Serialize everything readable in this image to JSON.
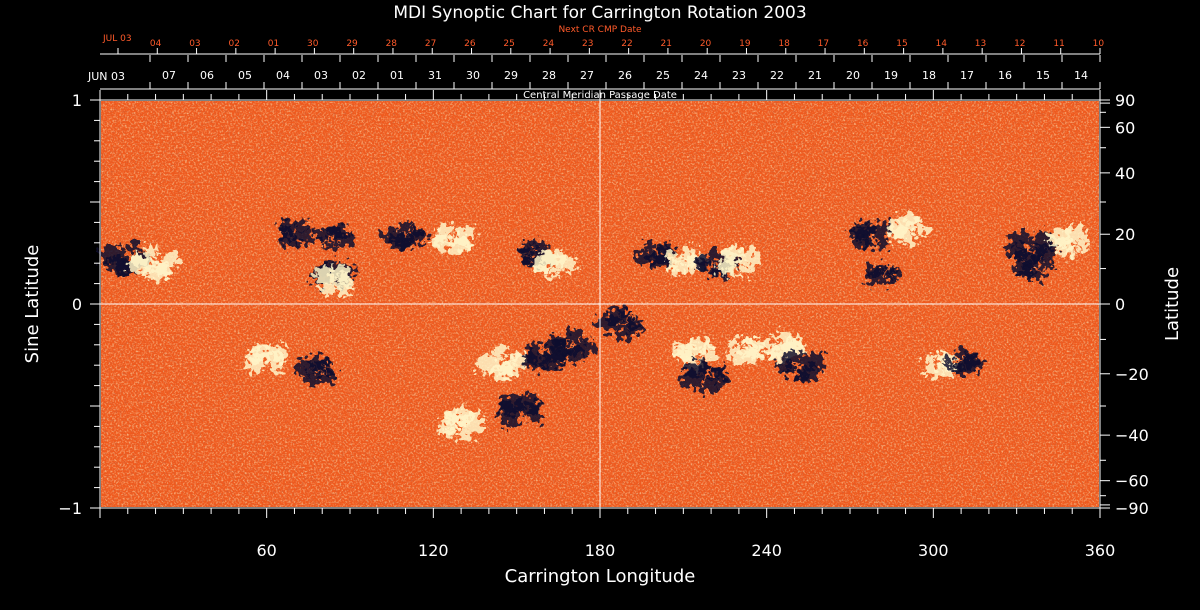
{
  "chart_data": {
    "type": "heatmap",
    "title": "MDI Synoptic Chart for Carrington Rotation 2003",
    "top_axis_label": "Next CR CMP Date",
    "top_axis_start_label": "JUL 03",
    "top_axis_ticks": [
      "04",
      "03",
      "02",
      "01",
      "30",
      "29",
      "28",
      "27",
      "26",
      "25",
      "24",
      "23",
      "22",
      "21",
      "20",
      "19",
      "18",
      "17",
      "16",
      "15",
      "14",
      "13",
      "12",
      "11",
      "10"
    ],
    "middle_axis_label": "Central Meridian Passage Date",
    "middle_axis_start_label": "JUN 03",
    "middle_axis_ticks": [
      "07",
      "06",
      "05",
      "04",
      "03",
      "02",
      "01",
      "31",
      "30",
      "29",
      "28",
      "27",
      "26",
      "25",
      "24",
      "23",
      "22",
      "21",
      "20",
      "19",
      "18",
      "17",
      "16",
      "15",
      "14"
    ],
    "xlabel": "Carrington Longitude",
    "xlim": [
      0,
      360
    ],
    "x_ticks": [
      60,
      120,
      180,
      240,
      300,
      360
    ],
    "ylabel_left": "Sine Latitude",
    "ylim": [
      -1,
      1
    ],
    "y_ticks_left": [
      "1",
      "0",
      "−1"
    ],
    "ylabel_right": "Latitude",
    "y_ticks_right": [
      90,
      60,
      40,
      20,
      0,
      -20,
      -40,
      -60,
      -90
    ],
    "grid": "crosshair at longitude 180 and sine latitude 0",
    "colors": {
      "background": "#000000",
      "text": "#ffffff",
      "top_axis": "#ff5a2a",
      "field_base": "#f0561c",
      "positive_polarity": "#fff4c8",
      "negative_polarity": "#12122e",
      "grid": "#ffffff"
    },
    "active_regions": [
      {
        "lon": 10,
        "sinlat": 0.23,
        "polarity": "negative",
        "strength": 1.0
      },
      {
        "lon": 20,
        "sinlat": 0.21,
        "polarity": "positive",
        "strength": 1.0
      },
      {
        "lon": 70,
        "sinlat": 0.35,
        "polarity": "negative",
        "strength": 0.6
      },
      {
        "lon": 84,
        "sinlat": 0.32,
        "polarity": "negative",
        "strength": 0.6
      },
      {
        "lon": 84,
        "sinlat": 0.13,
        "polarity": "negative",
        "strength": 0.8
      },
      {
        "lon": 85,
        "sinlat": 0.11,
        "polarity": "positive",
        "strength": 0.7
      },
      {
        "lon": 110,
        "sinlat": 0.34,
        "polarity": "negative",
        "strength": 0.7
      },
      {
        "lon": 127,
        "sinlat": 0.33,
        "polarity": "positive",
        "strength": 0.8
      },
      {
        "lon": 157,
        "sinlat": 0.25,
        "polarity": "negative",
        "strength": 0.6
      },
      {
        "lon": 163,
        "sinlat": 0.19,
        "polarity": "positive",
        "strength": 0.7
      },
      {
        "lon": 60,
        "sinlat": -0.28,
        "polarity": "positive",
        "strength": 0.8
      },
      {
        "lon": 78,
        "sinlat": -0.33,
        "polarity": "negative",
        "strength": 0.7
      },
      {
        "lon": 145,
        "sinlat": -0.28,
        "polarity": "positive",
        "strength": 0.9
      },
      {
        "lon": 160,
        "sinlat": -0.24,
        "polarity": "negative",
        "strength": 0.9
      },
      {
        "lon": 170,
        "sinlat": -0.2,
        "polarity": "negative",
        "strength": 0.8
      },
      {
        "lon": 130,
        "sinlat": -0.6,
        "polarity": "positive",
        "strength": 0.9
      },
      {
        "lon": 152,
        "sinlat": -0.53,
        "polarity": "negative",
        "strength": 1.0
      },
      {
        "lon": 188,
        "sinlat": -0.1,
        "polarity": "negative",
        "strength": 0.8
      },
      {
        "lon": 200,
        "sinlat": 0.25,
        "polarity": "negative",
        "strength": 0.6
      },
      {
        "lon": 210,
        "sinlat": 0.22,
        "polarity": "positive",
        "strength": 0.7
      },
      {
        "lon": 222,
        "sinlat": 0.2,
        "polarity": "negative",
        "strength": 0.7
      },
      {
        "lon": 230,
        "sinlat": 0.2,
        "polarity": "positive",
        "strength": 0.8
      },
      {
        "lon": 215,
        "sinlat": -0.25,
        "polarity": "positive",
        "strength": 0.8
      },
      {
        "lon": 218,
        "sinlat": -0.36,
        "polarity": "negative",
        "strength": 0.9
      },
      {
        "lon": 232,
        "sinlat": -0.22,
        "polarity": "positive",
        "strength": 0.6
      },
      {
        "lon": 245,
        "sinlat": -0.2,
        "polarity": "positive",
        "strength": 0.8
      },
      {
        "lon": 252,
        "sinlat": -0.3,
        "polarity": "negative",
        "strength": 0.9
      },
      {
        "lon": 278,
        "sinlat": 0.33,
        "polarity": "negative",
        "strength": 0.8
      },
      {
        "lon": 292,
        "sinlat": 0.36,
        "polarity": "positive",
        "strength": 0.8
      },
      {
        "lon": 282,
        "sinlat": 0.14,
        "polarity": "negative",
        "strength": 0.5
      },
      {
        "lon": 302,
        "sinlat": -0.29,
        "polarity": "positive",
        "strength": 0.6
      },
      {
        "lon": 310,
        "sinlat": -0.28,
        "polarity": "negative",
        "strength": 0.6
      },
      {
        "lon": 335,
        "sinlat": 0.28,
        "polarity": "negative",
        "strength": 1.0
      },
      {
        "lon": 350,
        "sinlat": 0.3,
        "polarity": "positive",
        "strength": 0.8
      },
      {
        "lon": 337,
        "sinlat": 0.18,
        "polarity": "negative",
        "strength": 0.6
      }
    ]
  }
}
